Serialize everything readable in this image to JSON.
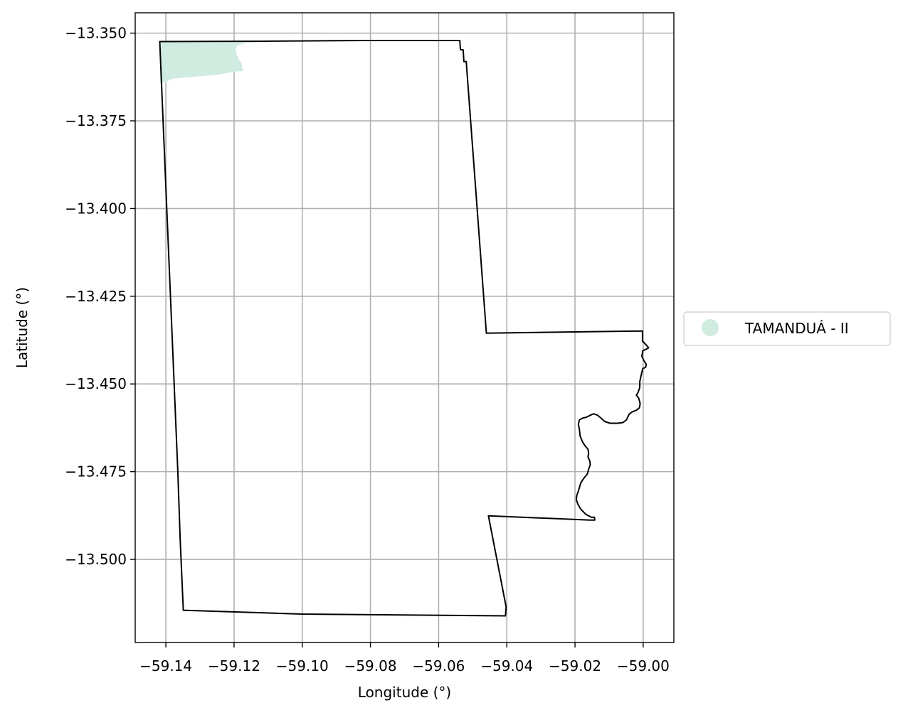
{
  "chart_data": {
    "type": "map",
    "xlabel": "Longitude (°)",
    "ylabel": "Latitude (°)",
    "xlim": [
      -59.149,
      -58.991
    ],
    "ylim": [
      -13.5237,
      -13.3442
    ],
    "x_ticks": [
      -59.14,
      -59.12,
      -59.1,
      -59.08,
      -59.06,
      -59.04,
      -59.02,
      -59.0
    ],
    "x_tick_labels": [
      "−59.14",
      "−59.12",
      "−59.10",
      "−59.08",
      "−59.06",
      "−59.04",
      "−59.02",
      "−59.00"
    ],
    "y_ticks": [
      -13.35,
      -13.375,
      -13.4,
      -13.425,
      -13.45,
      -13.475,
      -13.5
    ],
    "y_tick_labels": [
      "−13.350",
      "−13.375",
      "−13.400",
      "−13.425",
      "−13.450",
      "−13.475",
      "−13.500"
    ],
    "grid": true,
    "legend_position": "outside-right",
    "legend": [
      {
        "label": "TAMANDUÁ - II",
        "color": "#d0ebe0"
      }
    ],
    "boundary_color": "#000000",
    "boundary": [
      [
        -59.1418,
        -13.3524
      ],
      [
        -59.1112,
        -13.3523
      ],
      [
        -59.0822,
        -13.3521
      ],
      [
        -59.0538,
        -13.3521
      ],
      [
        -59.0536,
        -13.3547
      ],
      [
        -59.0528,
        -13.3548
      ],
      [
        -59.0526,
        -13.3581
      ],
      [
        -59.0519,
        -13.3581
      ],
      [
        -59.046,
        -13.4355
      ],
      [
        -59.0002,
        -13.4349
      ],
      [
        -59.0002,
        -13.4378
      ],
      [
        -58.9991,
        -13.4389
      ],
      [
        -58.9984,
        -13.4397
      ],
      [
        -58.9993,
        -13.4402
      ],
      [
        -59.0001,
        -13.4405
      ],
      [
        -59.0004,
        -13.4421
      ],
      [
        -58.9998,
        -13.4433
      ],
      [
        -58.9991,
        -13.4444
      ],
      [
        -58.9993,
        -13.4453
      ],
      [
        -59.0001,
        -13.4456
      ],
      [
        -59.0005,
        -13.4471
      ],
      [
        -59.001,
        -13.4493
      ],
      [
        -59.001,
        -13.451
      ],
      [
        -59.0015,
        -13.4524
      ],
      [
        -59.002,
        -13.4532
      ],
      [
        -59.0013,
        -13.4541
      ],
      [
        -59.0009,
        -13.4556
      ],
      [
        -59.0011,
        -13.4568
      ],
      [
        -59.002,
        -13.4575
      ],
      [
        -59.0033,
        -13.458
      ],
      [
        -59.0041,
        -13.4586
      ],
      [
        -59.0049,
        -13.4602
      ],
      [
        -59.0059,
        -13.461
      ],
      [
        -59.0075,
        -13.4612
      ],
      [
        -59.0097,
        -13.4612
      ],
      [
        -59.0113,
        -13.4607
      ],
      [
        -59.0124,
        -13.4597
      ],
      [
        -59.0134,
        -13.4589
      ],
      [
        -59.0145,
        -13.4585
      ],
      [
        -59.0157,
        -13.459
      ],
      [
        -59.0167,
        -13.4595
      ],
      [
        -59.0177,
        -13.4597
      ],
      [
        -59.0187,
        -13.4602
      ],
      [
        -59.019,
        -13.4615
      ],
      [
        -59.0187,
        -13.463
      ],
      [
        -59.0185,
        -13.4648
      ],
      [
        -59.0178,
        -13.4665
      ],
      [
        -59.017,
        -13.4677
      ],
      [
        -59.0162,
        -13.4686
      ],
      [
        -59.016,
        -13.4697
      ],
      [
        -59.0162,
        -13.4708
      ],
      [
        -59.0157,
        -13.4719
      ],
      [
        -59.0155,
        -13.473
      ],
      [
        -59.016,
        -13.4743
      ],
      [
        -59.0164,
        -13.4757
      ],
      [
        -59.0175,
        -13.477
      ],
      [
        -59.0183,
        -13.4782
      ],
      [
        -59.0187,
        -13.4795
      ],
      [
        -59.0191,
        -13.4808
      ],
      [
        -59.0195,
        -13.4818
      ],
      [
        -59.0196,
        -13.483
      ],
      [
        -59.0192,
        -13.4842
      ],
      [
        -59.0183,
        -13.4857
      ],
      [
        -59.0168,
        -13.4872
      ],
      [
        -59.0152,
        -13.488
      ],
      [
        -59.0143,
        -13.488
      ],
      [
        -59.0142,
        -13.4888
      ],
      [
        -59.0157,
        -13.4888
      ],
      [
        -59.0454,
        -13.4876
      ],
      [
        -59.0402,
        -13.5136
      ],
      [
        -59.0404,
        -13.5161
      ],
      [
        -59.1003,
        -13.5156
      ],
      [
        -59.1349,
        -13.5145
      ],
      [
        -59.1358,
        -13.4943
      ],
      [
        -59.1365,
        -13.475
      ],
      [
        -59.1418,
        -13.3524
      ]
    ],
    "shapes": [
      {
        "label": "TAMANDUÁ - II",
        "color": "#d0ebe0",
        "polygon": [
          [
            -59.1418,
            -13.3524
          ],
          [
            -59.1115,
            -13.3521
          ],
          [
            -59.1118,
            -13.3525
          ],
          [
            -59.1155,
            -13.3528
          ],
          [
            -59.1162,
            -13.3527
          ],
          [
            -59.1177,
            -13.3531
          ],
          [
            -59.1188,
            -13.3535
          ],
          [
            -59.1195,
            -13.3542
          ],
          [
            -59.1194,
            -13.3553
          ],
          [
            -59.119,
            -13.3566
          ],
          [
            -59.1186,
            -13.3575
          ],
          [
            -59.1178,
            -13.3585
          ],
          [
            -59.1176,
            -13.3597
          ],
          [
            -59.1173,
            -13.3608
          ],
          [
            -59.1208,
            -13.3611
          ],
          [
            -59.1243,
            -13.3618
          ],
          [
            -59.1383,
            -13.363
          ],
          [
            -59.14,
            -13.364
          ],
          [
            -59.1417,
            -13.3645
          ]
        ]
      }
    ]
  }
}
